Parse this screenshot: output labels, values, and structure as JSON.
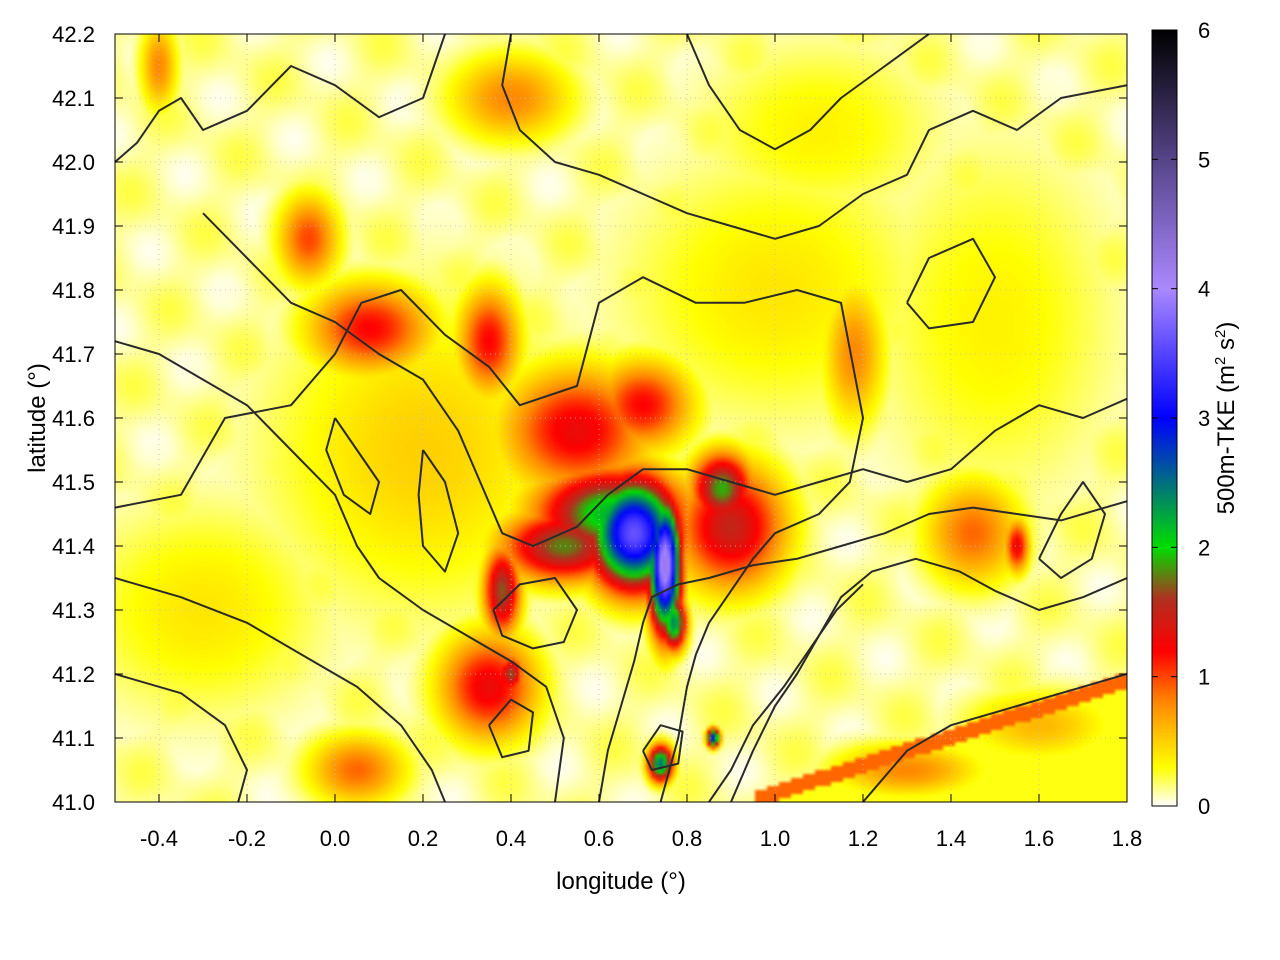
{
  "chart_data": {
    "type": "heatmap",
    "title": "",
    "xlabel": "longitude (°)",
    "ylabel": "latitude (°)",
    "colorbar_label": {
      "main": "500m-TKE (m",
      "sq": "2",
      "mid": " s",
      "sq2": "2",
      "end": ")"
    },
    "xlim": [
      -0.5,
      1.8
    ],
    "ylim": [
      41.0,
      42.2
    ],
    "x_ticks": [
      -0.4,
      -0.2,
      0.0,
      0.2,
      0.4,
      0.6,
      0.8,
      1.0,
      1.2,
      1.4,
      1.6,
      1.8
    ],
    "x_tick_labels": [
      "-0.4",
      "-0.2",
      "0.0",
      "0.2",
      "0.4",
      "0.6",
      "0.8",
      "1.0",
      "1.2",
      "1.4",
      "1.6",
      "1.8"
    ],
    "y_ticks": [
      41.0,
      41.1,
      41.2,
      41.3,
      41.4,
      41.5,
      41.6,
      41.7,
      41.8,
      41.9,
      42.0,
      42.1,
      42.2
    ],
    "y_tick_labels": [
      "41.0",
      "41.1",
      "41.2",
      "41.3",
      "41.4",
      "41.5",
      "41.6",
      "41.7",
      "41.8",
      "41.9",
      "42.0",
      "42.1",
      "42.2"
    ],
    "colorbar_range": [
      0,
      6
    ],
    "colorbar_ticks": [
      0,
      1,
      2,
      3,
      4,
      5,
      6
    ],
    "colorbar_tick_labels": [
      "0",
      "1",
      "2",
      "3",
      "4",
      "5",
      "6"
    ],
    "colormap_stops": [
      {
        "value": 0.0,
        "color": "#ffffff"
      },
      {
        "value": 0.3,
        "color": "#ffff00"
      },
      {
        "value": 0.8,
        "color": "#ff8800"
      },
      {
        "value": 1.2,
        "color": "#ff0000"
      },
      {
        "value": 1.6,
        "color": "#b03020"
      },
      {
        "value": 2.0,
        "color": "#00dd00"
      },
      {
        "value": 3.0,
        "color": "#0000ff"
      },
      {
        "value": 4.0,
        "color": "#aa88ff"
      },
      {
        "value": 5.0,
        "color": "#554488"
      },
      {
        "value": 6.0,
        "color": "#000000"
      }
    ],
    "grid": true,
    "features": [
      {
        "lon": 0.68,
        "lat": 41.42,
        "value": 3.6,
        "sx": 0.07,
        "sy": 0.06
      },
      {
        "lon": 0.75,
        "lat": 41.37,
        "value": 4.2,
        "sx": 0.025,
        "sy": 0.07
      },
      {
        "lon": 0.63,
        "lat": 41.45,
        "value": 2.2,
        "sx": 0.12,
        "sy": 0.05
      },
      {
        "lon": 0.52,
        "lat": 41.4,
        "value": 1.8,
        "sx": 0.1,
        "sy": 0.04
      },
      {
        "lon": 0.9,
        "lat": 41.43,
        "value": 1.5,
        "sx": 0.09,
        "sy": 0.07
      },
      {
        "lon": 0.88,
        "lat": 41.49,
        "value": 1.9,
        "sx": 0.05,
        "sy": 0.04
      },
      {
        "lon": 0.77,
        "lat": 41.28,
        "value": 2.4,
        "sx": 0.02,
        "sy": 0.03
      },
      {
        "lon": 0.38,
        "lat": 41.33,
        "value": 1.7,
        "sx": 0.03,
        "sy": 0.05
      },
      {
        "lon": 0.55,
        "lat": 41.58,
        "value": 1.3,
        "sx": 0.12,
        "sy": 0.07
      },
      {
        "lon": 0.7,
        "lat": 41.62,
        "value": 1.2,
        "sx": 0.08,
        "sy": 0.05
      },
      {
        "lon": 0.35,
        "lat": 41.72,
        "value": 1.2,
        "sx": 0.05,
        "sy": 0.06
      },
      {
        "lon": 0.08,
        "lat": 41.74,
        "value": 1.2,
        "sx": 0.1,
        "sy": 0.05
      },
      {
        "lon": -0.06,
        "lat": 41.88,
        "value": 1.0,
        "sx": 0.05,
        "sy": 0.05
      },
      {
        "lon": -0.4,
        "lat": 42.15,
        "value": 0.8,
        "sx": 0.03,
        "sy": 0.05
      },
      {
        "lon": 0.35,
        "lat": 41.18,
        "value": 1.3,
        "sx": 0.08,
        "sy": 0.06
      },
      {
        "lon": 0.4,
        "lat": 41.2,
        "value": 1.7,
        "sx": 0.02,
        "sy": 0.02
      },
      {
        "lon": 0.74,
        "lat": 41.06,
        "value": 2.5,
        "sx": 0.02,
        "sy": 0.02
      },
      {
        "lon": 0.86,
        "lat": 41.1,
        "value": 3.0,
        "sx": 0.01,
        "sy": 0.01
      },
      {
        "lon": 0.05,
        "lat": 41.05,
        "value": 0.9,
        "sx": 0.08,
        "sy": 0.04
      },
      {
        "lon": 1.18,
        "lat": 41.7,
        "value": 0.8,
        "sx": 0.05,
        "sy": 0.08
      },
      {
        "lon": 1.45,
        "lat": 41.42,
        "value": 0.9,
        "sx": 0.08,
        "sy": 0.06
      },
      {
        "lon": 1.55,
        "lat": 41.4,
        "value": 1.3,
        "sx": 0.02,
        "sy": 0.03
      },
      {
        "lon": 0.4,
        "lat": 42.1,
        "value": 0.8,
        "sx": 0.1,
        "sy": 0.05
      },
      {
        "lon": 1.3,
        "lat": 41.05,
        "value": 0.8,
        "sx": 0.12,
        "sy": 0.03
      },
      {
        "lon": 1.6,
        "lat": 41.12,
        "value": 0.6,
        "sx": 0.12,
        "sy": 0.04
      },
      {
        "lon": 0.2,
        "lat": 41.55,
        "value": 0.5,
        "sx": 0.25,
        "sy": 0.18
      },
      {
        "lon": 1.0,
        "lat": 41.8,
        "value": 0.4,
        "sx": 0.25,
        "sy": 0.15
      },
      {
        "lon": 1.1,
        "lat": 42.05,
        "value": 0.35,
        "sx": 0.2,
        "sy": 0.1
      },
      {
        "lon": -0.3,
        "lat": 41.3,
        "value": 0.4,
        "sx": 0.2,
        "sy": 0.12
      },
      {
        "lon": 1.5,
        "lat": 41.75,
        "value": 0.35,
        "sx": 0.2,
        "sy": 0.2
      }
    ],
    "contours": [
      [
        [
          -0.5,
          41.46
        ],
        [
          -0.35,
          41.48
        ],
        [
          -0.25,
          41.6
        ],
        [
          -0.1,
          41.62
        ],
        [
          0.0,
          41.7
        ],
        [
          0.06,
          41.78
        ],
        [
          0.15,
          41.8
        ],
        [
          0.25,
          41.73
        ],
        [
          0.35,
          41.68
        ],
        [
          0.42,
          41.62
        ],
        [
          0.55,
          41.65
        ],
        [
          0.6,
          41.78
        ],
        [
          0.7,
          41.82
        ],
        [
          0.82,
          41.78
        ],
        [
          0.93,
          41.78
        ],
        [
          1.05,
          41.8
        ],
        [
          1.15,
          41.78
        ],
        [
          1.2,
          41.6
        ],
        [
          1.17,
          41.5
        ],
        [
          1.1,
          41.45
        ],
        [
          1.0,
          41.42
        ],
        [
          0.95,
          41.38
        ],
        [
          0.9,
          41.33
        ],
        [
          0.85,
          41.28
        ],
        [
          0.82,
          41.23
        ],
        [
          0.8,
          41.18
        ],
        [
          0.78,
          41.1
        ],
        [
          0.74,
          41.0
        ]
      ],
      [
        [
          -0.5,
          42.0
        ],
        [
          -0.45,
          42.03
        ],
        [
          -0.4,
          42.08
        ],
        [
          -0.35,
          42.1
        ],
        [
          -0.3,
          42.05
        ],
        [
          -0.2,
          42.08
        ],
        [
          -0.1,
          42.15
        ],
        [
          0.0,
          42.12
        ],
        [
          0.1,
          42.07
        ],
        [
          0.2,
          42.1
        ],
        [
          0.25,
          42.2
        ]
      ],
      [
        [
          -0.3,
          41.92
        ],
        [
          -0.2,
          41.85
        ],
        [
          -0.1,
          41.78
        ],
        [
          0.0,
          41.75
        ],
        [
          0.1,
          41.7
        ],
        [
          0.2,
          41.66
        ],
        [
          0.28,
          41.58
        ],
        [
          0.33,
          41.5
        ],
        [
          0.38,
          41.42
        ],
        [
          0.45,
          41.4
        ],
        [
          0.55,
          41.43
        ],
        [
          0.62,
          41.48
        ],
        [
          0.7,
          41.52
        ],
        [
          0.8,
          41.52
        ],
        [
          0.9,
          41.5
        ],
        [
          1.0,
          41.48
        ],
        [
          1.1,
          41.5
        ],
        [
          1.2,
          41.52
        ],
        [
          1.3,
          41.5
        ],
        [
          1.4,
          41.52
        ],
        [
          1.5,
          41.58
        ],
        [
          1.6,
          41.62
        ],
        [
          1.7,
          41.6
        ],
        [
          1.8,
          41.63
        ]
      ],
      [
        [
          -0.5,
          41.72
        ],
        [
          -0.4,
          41.7
        ],
        [
          -0.3,
          41.66
        ],
        [
          -0.2,
          41.62
        ],
        [
          -0.1,
          41.55
        ],
        [
          0.0,
          41.48
        ],
        [
          0.05,
          41.4
        ],
        [
          0.1,
          41.35
        ],
        [
          0.2,
          41.3
        ],
        [
          0.3,
          41.26
        ],
        [
          0.4,
          41.22
        ],
        [
          0.48,
          41.18
        ],
        [
          0.52,
          41.1
        ],
        [
          0.5,
          41.0
        ]
      ],
      [
        [
          -0.5,
          41.35
        ],
        [
          -0.35,
          41.32
        ],
        [
          -0.2,
          41.28
        ],
        [
          -0.05,
          41.22
        ],
        [
          0.05,
          41.18
        ],
        [
          0.15,
          41.12
        ],
        [
          0.22,
          41.05
        ],
        [
          0.25,
          41.0
        ]
      ],
      [
        [
          -0.5,
          41.2
        ],
        [
          -0.35,
          41.17
        ],
        [
          -0.25,
          41.12
        ],
        [
          -0.2,
          41.05
        ],
        [
          -0.22,
          41.0
        ]
      ],
      [
        [
          0.6,
          41.0
        ],
        [
          0.62,
          41.08
        ],
        [
          0.65,
          41.15
        ],
        [
          0.68,
          41.22
        ],
        [
          0.7,
          41.28
        ],
        [
          0.72,
          41.32
        ],
        [
          0.78,
          41.34
        ],
        [
          0.85,
          41.35
        ],
        [
          0.95,
          41.37
        ],
        [
          1.05,
          41.38
        ],
        [
          1.15,
          41.4
        ],
        [
          1.25,
          41.42
        ],
        [
          1.35,
          41.45
        ],
        [
          1.45,
          41.46
        ],
        [
          1.55,
          41.45
        ],
        [
          1.65,
          41.44
        ],
        [
          1.8,
          41.47
        ]
      ],
      [
        [
          0.9,
          41.0
        ],
        [
          0.95,
          41.08
        ],
        [
          1.0,
          41.15
        ],
        [
          1.05,
          41.2
        ],
        [
          1.1,
          41.26
        ],
        [
          1.15,
          41.32
        ],
        [
          1.22,
          41.36
        ],
        [
          1.32,
          41.38
        ],
        [
          1.42,
          41.36
        ],
        [
          1.5,
          41.33
        ],
        [
          1.6,
          41.3
        ],
        [
          1.7,
          41.32
        ],
        [
          1.8,
          41.35
        ]
      ],
      [
        [
          0.85,
          41.0
        ],
        [
          0.9,
          41.05
        ],
        [
          0.95,
          41.12
        ],
        [
          1.02,
          41.18
        ],
        [
          1.08,
          41.24
        ],
        [
          1.14,
          41.3
        ],
        [
          1.2,
          41.34
        ]
      ],
      [
        [
          0.4,
          42.2
        ],
        [
          0.38,
          42.12
        ],
        [
          0.42,
          42.05
        ],
        [
          0.5,
          42.0
        ],
        [
          0.6,
          41.98
        ],
        [
          0.7,
          41.95
        ],
        [
          0.8,
          41.92
        ],
        [
          0.9,
          41.9
        ],
        [
          1.0,
          41.88
        ],
        [
          1.1,
          41.9
        ],
        [
          1.2,
          41.95
        ],
        [
          1.3,
          41.98
        ],
        [
          1.35,
          42.05
        ],
        [
          1.45,
          42.08
        ],
        [
          1.55,
          42.05
        ],
        [
          1.65,
          42.1
        ],
        [
          1.8,
          42.12
        ]
      ],
      [
        [
          0.8,
          42.2
        ],
        [
          0.85,
          42.12
        ],
        [
          0.92,
          42.05
        ],
        [
          1.0,
          42.02
        ],
        [
          1.08,
          42.05
        ],
        [
          1.15,
          42.1
        ],
        [
          1.25,
          42.15
        ],
        [
          1.35,
          42.2
        ]
      ],
      [
        [
          1.2,
          41.0
        ],
        [
          1.3,
          41.08
        ],
        [
          1.4,
          41.12
        ],
        [
          1.5,
          41.14
        ],
        [
          1.6,
          41.16
        ],
        [
          1.7,
          41.18
        ],
        [
          1.8,
          41.2
        ]
      ],
      [
        [
          0.36,
          41.3
        ],
        [
          0.42,
          41.34
        ],
        [
          0.5,
          41.35
        ],
        [
          0.55,
          41.3
        ],
        [
          0.52,
          41.25
        ],
        [
          0.45,
          41.24
        ],
        [
          0.38,
          41.26
        ],
        [
          0.36,
          41.3
        ]
      ],
      [
        [
          0.2,
          41.55
        ],
        [
          0.25,
          41.5
        ],
        [
          0.28,
          41.42
        ],
        [
          0.25,
          41.36
        ],
        [
          0.2,
          41.4
        ],
        [
          0.19,
          41.48
        ],
        [
          0.2,
          41.55
        ]
      ],
      [
        [
          0.0,
          41.6
        ],
        [
          0.05,
          41.55
        ],
        [
          0.1,
          41.5
        ],
        [
          0.08,
          41.45
        ],
        [
          0.02,
          41.48
        ],
        [
          -0.02,
          41.55
        ],
        [
          0.0,
          41.6
        ]
      ],
      [
        [
          1.6,
          41.38
        ],
        [
          1.65,
          41.45
        ],
        [
          1.7,
          41.5
        ],
        [
          1.75,
          41.45
        ],
        [
          1.72,
          41.38
        ],
        [
          1.65,
          41.35
        ],
        [
          1.6,
          41.38
        ]
      ],
      [
        [
          1.3,
          41.78
        ],
        [
          1.35,
          41.85
        ],
        [
          1.45,
          41.88
        ],
        [
          1.5,
          41.82
        ],
        [
          1.45,
          41.75
        ],
        [
          1.35,
          41.74
        ],
        [
          1.3,
          41.78
        ]
      ],
      [
        [
          0.35,
          41.12
        ],
        [
          0.4,
          41.16
        ],
        [
          0.45,
          41.14
        ],
        [
          0.44,
          41.08
        ],
        [
          0.38,
          41.07
        ],
        [
          0.35,
          41.12
        ]
      ],
      [
        [
          0.7,
          41.08
        ],
        [
          0.74,
          41.12
        ],
        [
          0.79,
          41.11
        ],
        [
          0.78,
          41.06
        ],
        [
          0.72,
          41.05
        ],
        [
          0.7,
          41.08
        ]
      ]
    ]
  }
}
